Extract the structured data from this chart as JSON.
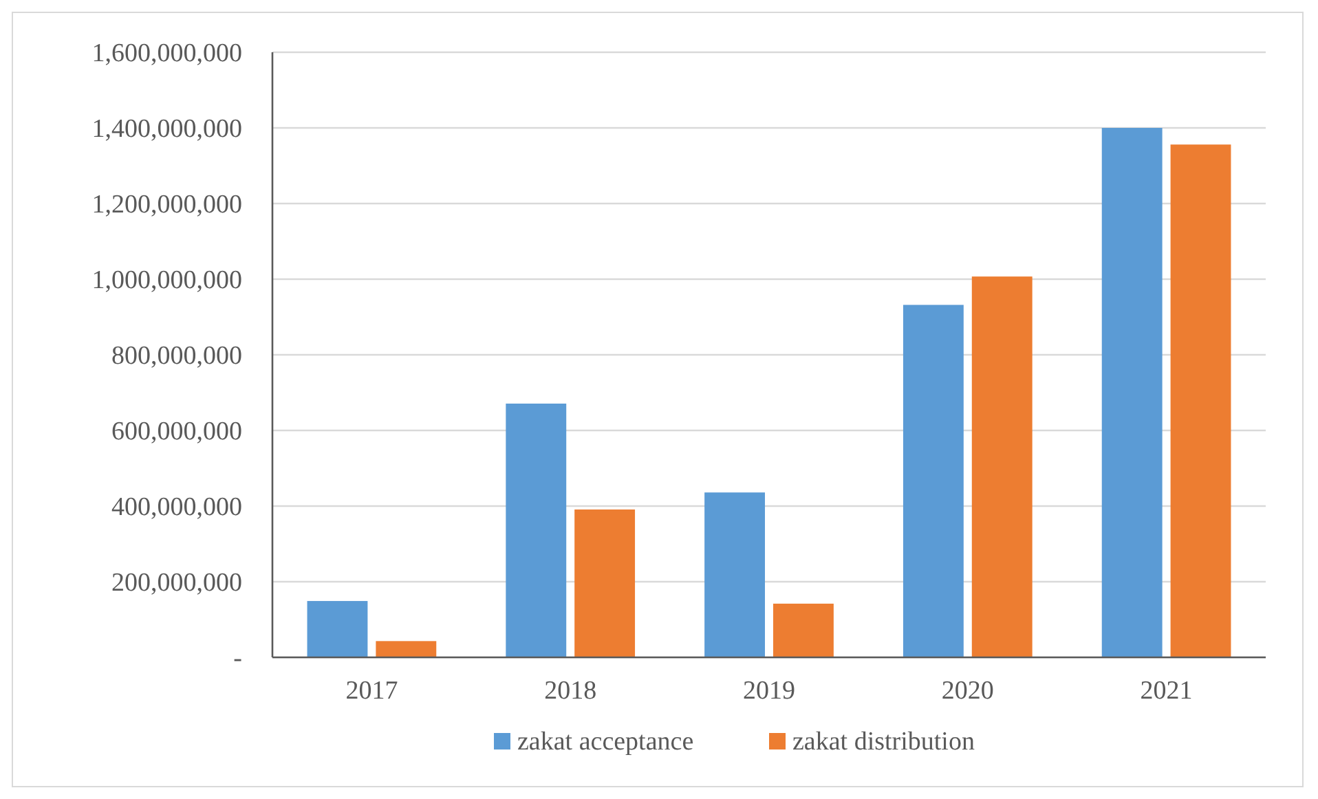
{
  "chart_data": {
    "type": "bar",
    "categories": [
      "2017",
      "2018",
      "2019",
      "2020",
      "2021"
    ],
    "series": [
      {
        "name": "zakat acceptance",
        "color": "#5b9bd5",
        "values": [
          149000000,
          671000000,
          436000000,
          932000000,
          1400000000
        ]
      },
      {
        "name": "zakat distribution",
        "color": "#ed7d31",
        "values": [
          43000000,
          391000000,
          142000000,
          1007000000,
          1356000000
        ]
      }
    ],
    "ylim": [
      0,
      1600000000
    ],
    "yticks": [
      {
        "value": 0,
        "label": "-"
      },
      {
        "value": 200000000,
        "label": "200,000,000"
      },
      {
        "value": 400000000,
        "label": "400,000,000"
      },
      {
        "value": 600000000,
        "label": "600,000,000"
      },
      {
        "value": 800000000,
        "label": "800,000,000"
      },
      {
        "value": 1000000000,
        "label": "1,000,000,000"
      },
      {
        "value": 1200000000,
        "label": "1,200,000,000"
      },
      {
        "value": 1400000000,
        "label": "1,400,000,000"
      },
      {
        "value": 1600000000,
        "label": "1,600,000,000"
      }
    ],
    "grid": "y",
    "legend": "bottom"
  }
}
